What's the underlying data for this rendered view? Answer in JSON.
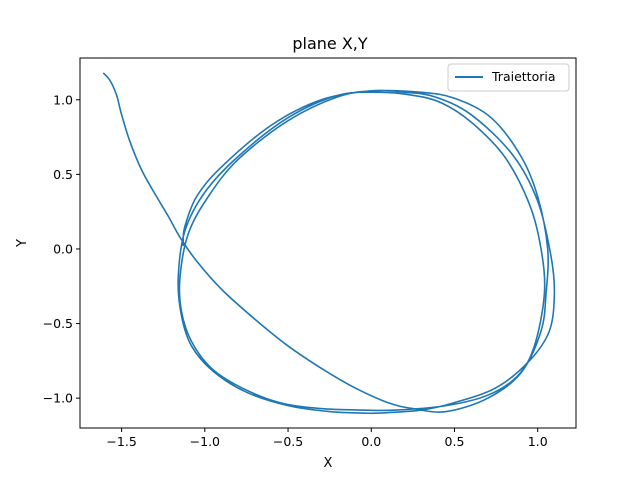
{
  "chart_data": {
    "type": "line",
    "title": "plane X,Y",
    "xlabel": "X",
    "ylabel": "Y",
    "xlim": [
      -1.75,
      1.23
    ],
    "ylim": [
      -1.2,
      1.28
    ],
    "xticks": [
      -1.5,
      -1.0,
      -0.5,
      0.0,
      0.5,
      1.0
    ],
    "xtick_labels": [
      "−1.5",
      "−1.0",
      "−0.5",
      "0.0",
      "0.5",
      "1.0"
    ],
    "yticks": [
      -1.0,
      -0.5,
      0.0,
      0.5,
      1.0
    ],
    "ytick_labels": [
      "−1.0",
      "−0.5",
      "0.0",
      "0.5",
      "1.0"
    ],
    "grid": false,
    "legend_position": "top-right",
    "series": [
      {
        "name": "Traiettoria",
        "color": "#1f77b4",
        "x": [
          -1.61,
          -1.57,
          -1.53,
          -1.5,
          -1.45,
          -1.38,
          -1.3,
          -1.22,
          -1.15,
          -1.05,
          -0.9,
          -0.7,
          -0.5,
          -0.3,
          -0.1,
          0.1,
          0.25,
          0.45,
          0.7,
          0.9,
          1.02,
          1.05,
          1.06,
          1.0,
          0.9,
          0.72,
          0.5,
          0.3,
          0.02,
          -0.2,
          -0.5,
          -0.8,
          -0.98,
          -1.1,
          -1.15,
          -1.14,
          -1.08,
          -0.96,
          -0.78,
          -0.55,
          -0.3,
          -0.05,
          0.15,
          0.45,
          0.7,
          0.88,
          0.98,
          1.04,
          1.02,
          0.95,
          0.8,
          0.6,
          0.42,
          0.25,
          0.05,
          -0.2,
          -0.5,
          -0.8,
          -1.0,
          -1.12,
          -1.16,
          -1.14,
          -1.08,
          -0.95,
          -0.75,
          -0.5,
          -0.25,
          -0.05,
          0.05,
          0.3,
          0.5,
          0.75,
          0.95,
          1.07,
          1.1,
          1.08,
          1.0,
          0.85,
          0.6,
          0.38,
          0.2,
          0.0,
          -0.3,
          -0.6,
          -0.9,
          -1.05,
          -1.12,
          -1.13,
          -1.13
        ],
        "y": [
          1.18,
          1.13,
          1.03,
          0.9,
          0.72,
          0.53,
          0.37,
          0.22,
          0.08,
          -0.08,
          -0.27,
          -0.47,
          -0.65,
          -0.8,
          -0.93,
          -1.03,
          -1.07,
          -1.09,
          -1.0,
          -0.83,
          -0.55,
          -0.3,
          0.0,
          0.35,
          0.62,
          0.88,
          1.01,
          1.05,
          1.06,
          1.02,
          0.86,
          0.6,
          0.35,
          0.1,
          -0.2,
          -0.42,
          -0.62,
          -0.8,
          -0.93,
          -1.03,
          -1.07,
          -1.08,
          -1.08,
          -1.05,
          -0.98,
          -0.85,
          -0.65,
          -0.3,
          0.0,
          0.3,
          0.62,
          0.85,
          0.98,
          1.03,
          1.05,
          1.03,
          0.88,
          0.62,
          0.38,
          0.12,
          -0.2,
          -0.45,
          -0.65,
          -0.82,
          -0.96,
          -1.05,
          -1.09,
          -1.1,
          -1.1,
          -1.08,
          -1.03,
          -0.93,
          -0.75,
          -0.55,
          -0.3,
          -0.05,
          0.32,
          0.63,
          0.9,
          1.02,
          1.05,
          1.06,
          1.0,
          0.83,
          0.55,
          0.35,
          0.15,
          0.05,
          0.02
        ]
      }
    ]
  }
}
